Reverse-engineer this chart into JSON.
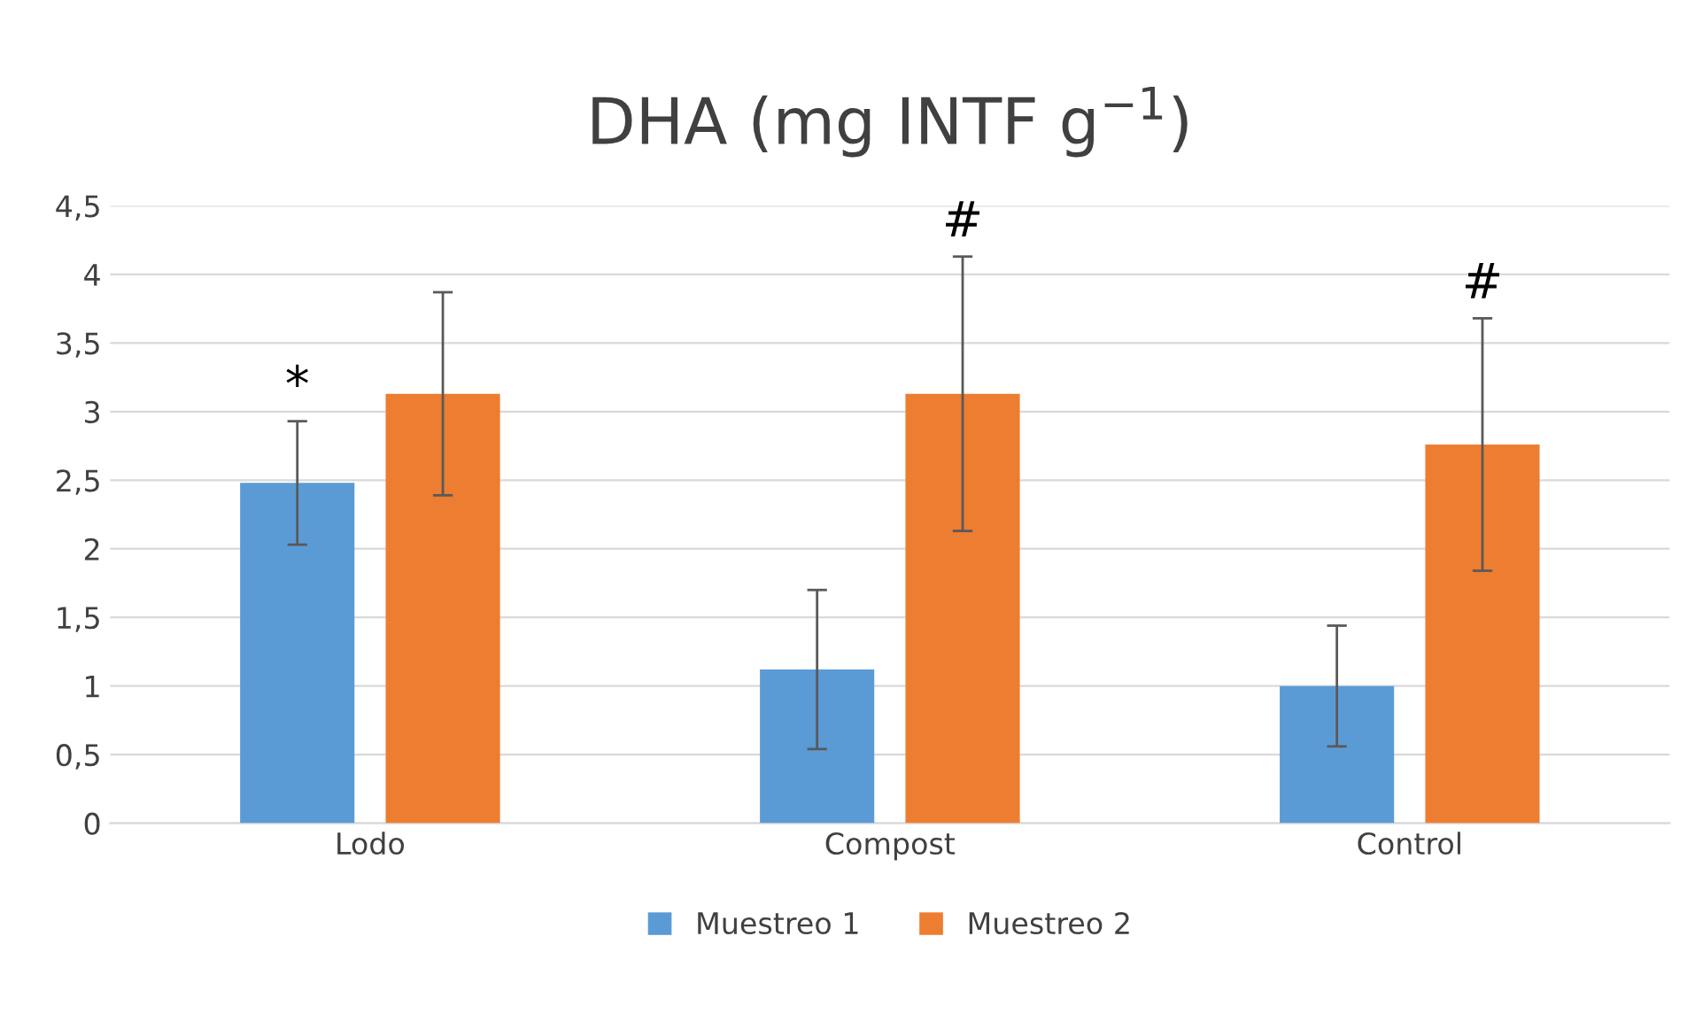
{
  "chart_data": {
    "type": "bar",
    "title": "DHA (mg INTF g$^{−1}$)",
    "categories": [
      "Lodo",
      "Compost",
      "Control"
    ],
    "series": [
      {
        "name": "Muestreo 1",
        "color": "#5b9bd5",
        "values": [
          2.48,
          1.12,
          1.0
        ],
        "errors": [
          0.45,
          0.58,
          0.44
        ],
        "value_labels": [
          "*",
          null,
          null
        ]
      },
      {
        "name": "Muestreo 2",
        "color": "#ed7d31",
        "values": [
          3.13,
          3.13,
          2.76
        ],
        "errors": [
          0.74,
          1.0,
          0.92
        ],
        "value_labels": [
          null,
          "#",
          "#"
        ]
      }
    ],
    "ylim": [
      0,
      4.5
    ],
    "yticks": [
      0,
      {
        "value": 0.5,
        "label": "0,5"
      },
      1,
      {
        "value": 1.5,
        "label": "1,5"
      },
      2,
      {
        "value": 2.5,
        "label": "2,5"
      },
      3,
      {
        "value": 3.5,
        "label": "3,5"
      },
      4,
      {
        "value": 4.5,
        "label": "4,5"
      }
    ],
    "grid": "y",
    "legend": "bottom"
  }
}
